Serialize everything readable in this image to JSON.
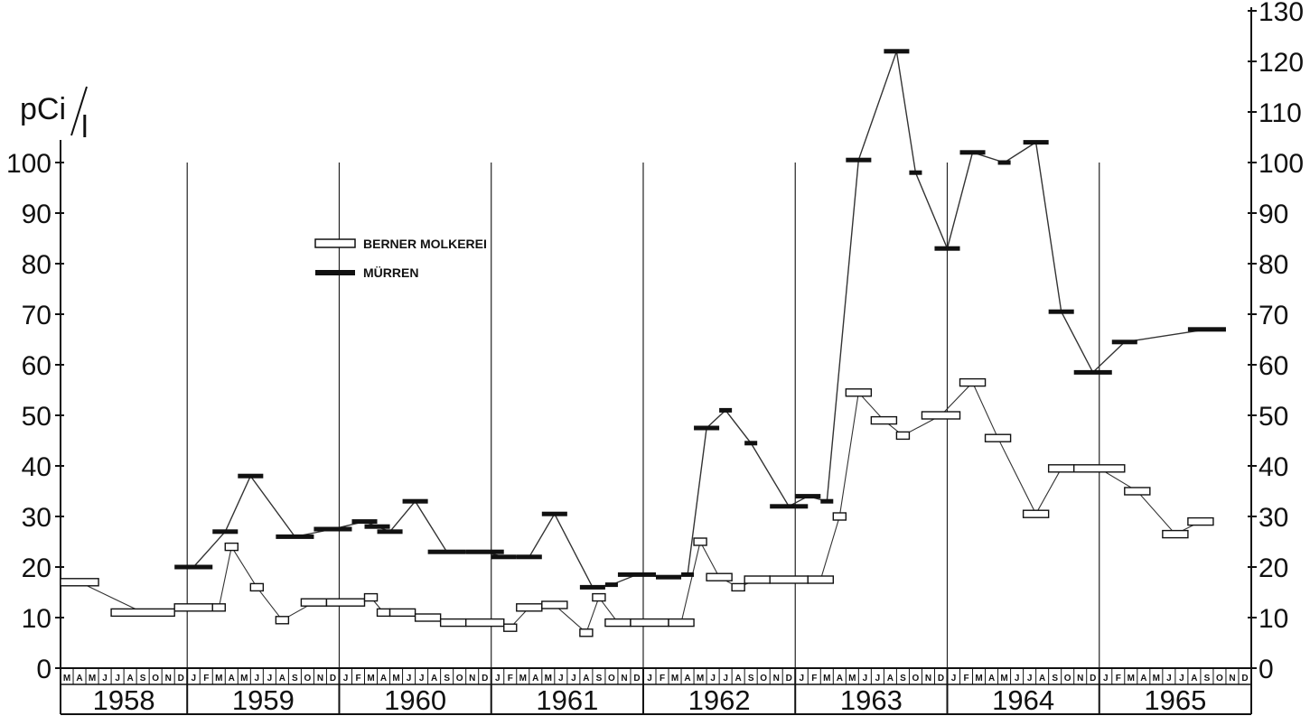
{
  "chart_data": {
    "type": "line",
    "unit_label": {
      "main": "pCi",
      "sub": "l"
    },
    "y_left": {
      "ylim": [
        0,
        100
      ],
      "ticks": [
        0,
        10,
        20,
        30,
        40,
        50,
        60,
        70,
        80,
        90,
        100
      ]
    },
    "y_right": {
      "ylim": [
        0,
        130
      ],
      "ticks": [
        0,
        10,
        20,
        30,
        40,
        50,
        60,
        70,
        80,
        90,
        100,
        110,
        120,
        130
      ]
    },
    "years": [
      "1958",
      "1959",
      "1960",
      "1961",
      "1962",
      "1963",
      "1964",
      "1965"
    ],
    "month_letters": [
      "J",
      "F",
      "M",
      "A",
      "M",
      "J",
      "J",
      "A",
      "S",
      "O",
      "N",
      "D"
    ],
    "x_start": "1958-03",
    "x_end": "1965-12",
    "grid": "vertical lines at year boundaries",
    "legend": {
      "placement": "upper-left",
      "items": [
        {
          "label": "BERNER MOLKEREI",
          "marker": "open-bar"
        },
        {
          "label": "MÜRREN",
          "marker": "filled-bar"
        }
      ]
    },
    "series": [
      {
        "name": "BERNER MOLKEREI",
        "marker": "open-bar",
        "points": [
          {
            "x": "1958-03",
            "x_end": "1958-05",
            "y": 17
          },
          {
            "x": "1958-07",
            "x_end": "1958-11",
            "y": 11
          },
          {
            "x": "1958-12",
            "x_end": "1959-02",
            "y": 12
          },
          {
            "x": "1959-03",
            "x_end": "1959-03",
            "y": 12
          },
          {
            "x": "1959-04",
            "x_end": "1959-04",
            "y": 24
          },
          {
            "x": "1959-06",
            "x_end": "1959-06",
            "y": 16
          },
          {
            "x": "1959-08",
            "x_end": "1959-08",
            "y": 9.5
          },
          {
            "x": "1959-10",
            "x_end": "1959-11",
            "y": 13
          },
          {
            "x": "1959-12",
            "x_end": "1960-02",
            "y": 13
          },
          {
            "x": "1960-03",
            "x_end": "1960-03",
            "y": 14
          },
          {
            "x": "1960-04",
            "x_end": "1960-04",
            "y": 11
          },
          {
            "x": "1960-05",
            "x_end": "1960-06",
            "y": 11
          },
          {
            "x": "1960-07",
            "x_end": "1960-08",
            "y": 10
          },
          {
            "x": "1960-09",
            "x_end": "1960-10",
            "y": 9
          },
          {
            "x": "1960-11",
            "x_end": "1961-01",
            "y": 9
          },
          {
            "x": "1961-02",
            "x_end": "1961-02",
            "y": 8
          },
          {
            "x": "1961-03",
            "x_end": "1961-04",
            "y": 12
          },
          {
            "x": "1961-05",
            "x_end": "1961-06",
            "y": 12.5
          },
          {
            "x": "1961-08",
            "x_end": "1961-08",
            "y": 7
          },
          {
            "x": "1961-09",
            "x_end": "1961-09",
            "y": 14
          },
          {
            "x": "1961-10",
            "x_end": "1961-11",
            "y": 9
          },
          {
            "x": "1961-12",
            "x_end": "1962-02",
            "y": 9
          },
          {
            "x": "1962-03",
            "x_end": "1962-04",
            "y": 9
          },
          {
            "x": "1962-05",
            "x_end": "1962-05",
            "y": 25
          },
          {
            "x": "1962-06",
            "x_end": "1962-07",
            "y": 18
          },
          {
            "x": "1962-08",
            "x_end": "1962-08",
            "y": 16
          },
          {
            "x": "1962-09",
            "x_end": "1962-10",
            "y": 17.5
          },
          {
            "x": "1962-11",
            "x_end": "1963-01",
            "y": 17.5
          },
          {
            "x": "1963-02",
            "x_end": "1963-03",
            "y": 17.5
          },
          {
            "x": "1963-04",
            "x_end": "1963-04",
            "y": 30
          },
          {
            "x": "1963-05",
            "x_end": "1963-06",
            "y": 54.5
          },
          {
            "x": "1963-07",
            "x_end": "1963-08",
            "y": 49
          },
          {
            "x": "1963-09",
            "x_end": "1963-09",
            "y": 46
          },
          {
            "x": "1963-11",
            "x_end": "1964-01",
            "y": 50
          },
          {
            "x": "1964-02",
            "x_end": "1964-03",
            "y": 56.5
          },
          {
            "x": "1964-04",
            "x_end": "1964-05",
            "y": 45.5
          },
          {
            "x": "1964-07",
            "x_end": "1964-08",
            "y": 30.5
          },
          {
            "x": "1964-09",
            "x_end": "1964-10",
            "y": 39.5
          },
          {
            "x": "1964-11",
            "x_end": "1965-02",
            "y": 39.5
          },
          {
            "x": "1965-03",
            "x_end": "1965-04",
            "y": 35
          },
          {
            "x": "1965-06",
            "x_end": "1965-07",
            "y": 26.5
          },
          {
            "x": "1965-08",
            "x_end": "1965-09",
            "y": 29
          }
        ]
      },
      {
        "name": "MÜRREN",
        "marker": "filled-bar",
        "points": [
          {
            "x": "1958-12",
            "x_end": "1959-02",
            "y": 20
          },
          {
            "x": "1959-03",
            "x_end": "1959-04",
            "y": 27
          },
          {
            "x": "1959-05",
            "x_end": "1959-06",
            "y": 38
          },
          {
            "x": "1959-08",
            "x_end": "1959-10",
            "y": 26
          },
          {
            "x": "1959-11",
            "x_end": "1960-01",
            "y": 27.5
          },
          {
            "x": "1960-02",
            "x_end": "1960-03",
            "y": 29
          },
          {
            "x": "1960-03",
            "x_end": "1960-04",
            "y": 28
          },
          {
            "x": "1960-04",
            "x_end": "1960-05",
            "y": 27
          },
          {
            "x": "1960-06",
            "x_end": "1960-07",
            "y": 33
          },
          {
            "x": "1960-08",
            "x_end": "1960-10",
            "y": 23
          },
          {
            "x": "1960-11",
            "x_end": "1961-01",
            "y": 23
          },
          {
            "x": "1961-01",
            "x_end": "1961-02",
            "y": 22
          },
          {
            "x": "1961-03",
            "x_end": "1961-04",
            "y": 22
          },
          {
            "x": "1961-05",
            "x_end": "1961-06",
            "y": 30.5
          },
          {
            "x": "1961-08",
            "x_end": "1961-09",
            "y": 16
          },
          {
            "x": "1961-10",
            "x_end": "1961-10",
            "y": 16.5
          },
          {
            "x": "1961-11",
            "x_end": "1962-01",
            "y": 18.5
          },
          {
            "x": "1962-02",
            "x_end": "1962-03",
            "y": 18
          },
          {
            "x": "1962-04",
            "x_end": "1962-04",
            "y": 18.5
          },
          {
            "x": "1962-05",
            "x_end": "1962-06",
            "y": 47.5
          },
          {
            "x": "1962-07",
            "x_end": "1962-07",
            "y": 51
          },
          {
            "x": "1962-09",
            "x_end": "1962-09",
            "y": 44.5
          },
          {
            "x": "1962-11",
            "x_end": "1963-01",
            "y": 32
          },
          {
            "x": "1963-01",
            "x_end": "1963-02",
            "y": 34
          },
          {
            "x": "1963-03",
            "x_end": "1963-03",
            "y": 33
          },
          {
            "x": "1963-05",
            "x_end": "1963-06",
            "y": 100.5
          },
          {
            "x": "1963-08",
            "x_end": "1963-09",
            "y": 122
          },
          {
            "x": "1963-10",
            "x_end": "1963-10",
            "y": 98
          },
          {
            "x": "1963-12",
            "x_end": "1964-01",
            "y": 83
          },
          {
            "x": "1964-02",
            "x_end": "1964-03",
            "y": 102
          },
          {
            "x": "1964-05",
            "x_end": "1964-05",
            "y": 100
          },
          {
            "x": "1964-07",
            "x_end": "1964-08",
            "y": 104
          },
          {
            "x": "1964-09",
            "x_end": "1964-10",
            "y": 70.5
          },
          {
            "x": "1964-11",
            "x_end": "1965-01",
            "y": 58.5
          },
          {
            "x": "1965-02",
            "x_end": "1965-03",
            "y": 64.5
          },
          {
            "x": "1965-08",
            "x_end": "1965-10",
            "y": 67
          }
        ]
      }
    ]
  }
}
